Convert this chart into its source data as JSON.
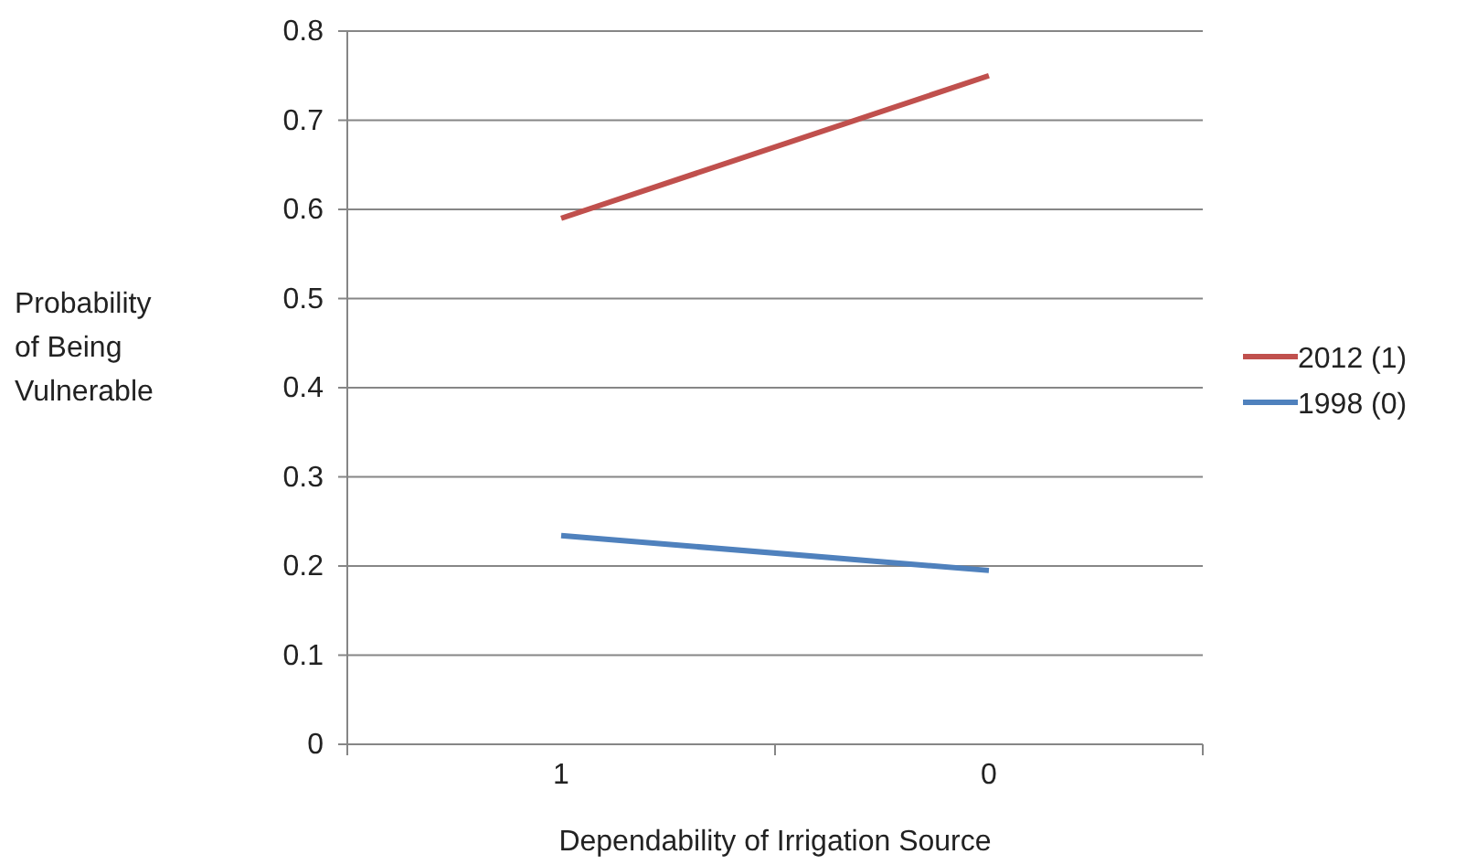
{
  "chart_data": {
    "type": "line",
    "xlabel": "Dependability of Irrigation Source",
    "ylabel": "Probability of Being Vulnerable",
    "categories": [
      "1",
      "0"
    ],
    "series": [
      {
        "name": "2012 (1)",
        "color": "#c0504d",
        "values": [
          0.59,
          0.75
        ]
      },
      {
        "name": "1998 (0)",
        "color": "#4f81bd",
        "values": [
          0.234,
          0.195
        ]
      }
    ],
    "ylim": [
      0,
      0.8
    ],
    "yticks": [
      0,
      0.1,
      0.2,
      0.3,
      0.4,
      0.5,
      0.6,
      0.7,
      0.8
    ],
    "grid": "y",
    "legend": "right",
    "marker": "none",
    "line_style": "solid"
  }
}
